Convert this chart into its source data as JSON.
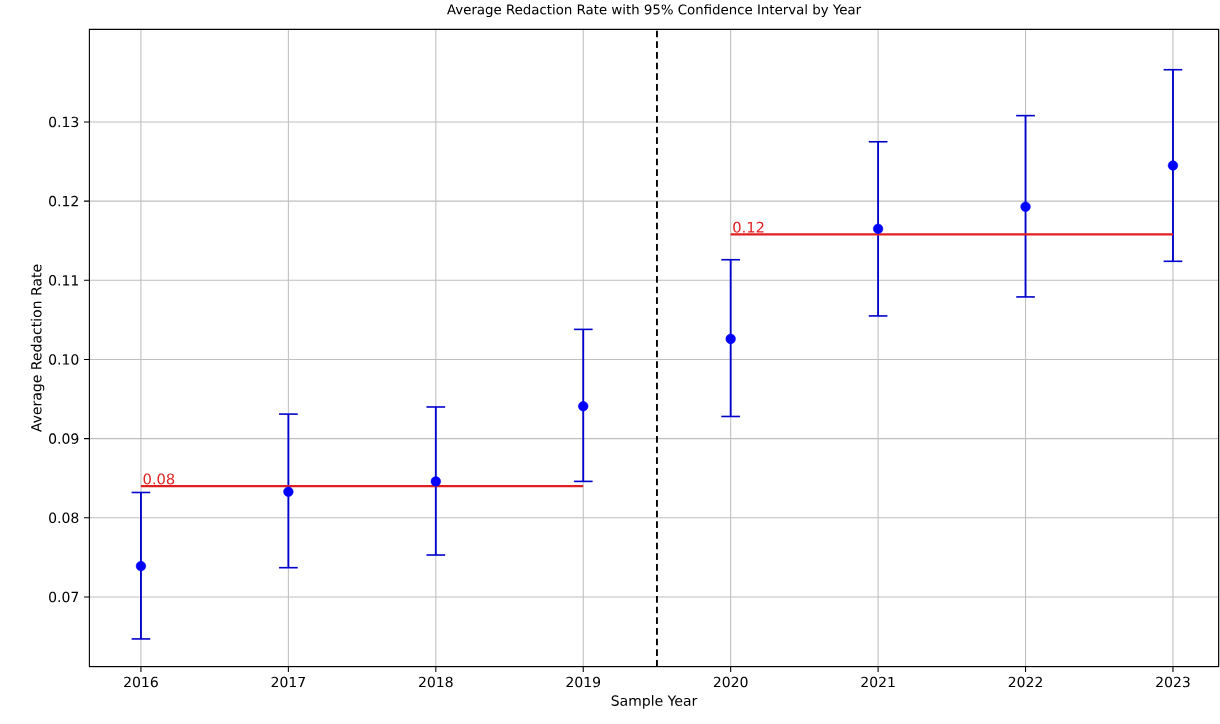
{
  "chart_data": {
    "type": "scatter",
    "title": "Average Redaction Rate with 95% Confidence Interval by Year",
    "xlabel": "Sample Year",
    "ylabel": "Average Redaction Rate",
    "xlim": [
      2015.65,
      2023.31
    ],
    "ylim": [
      0.0612,
      0.1417
    ],
    "xticks": [
      2016,
      2017,
      2018,
      2019,
      2020,
      2021,
      2022,
      2023
    ],
    "yticks": [
      {
        "value": 0.07,
        "label": "0.07"
      },
      {
        "value": 0.08,
        "label": "0.08"
      },
      {
        "value": 0.09,
        "label": "0.09"
      },
      {
        "value": 0.1,
        "label": "0.10"
      },
      {
        "value": 0.11,
        "label": "0.11"
      },
      {
        "value": 0.12,
        "label": "0.12"
      },
      {
        "value": 0.13,
        "label": "0.13"
      }
    ],
    "grid": true,
    "series": [
      {
        "color": "#0000ff",
        "marker": "circle",
        "x": [
          2016,
          2017,
          2018,
          2019,
          2020,
          2021,
          2022,
          2023
        ],
        "values": [
          0.0739,
          0.0833,
          0.0846,
          0.0941,
          0.1026,
          0.1165,
          0.1193,
          0.1245
        ],
        "errors": [
          [
            0.0647,
            0.0832
          ],
          [
            0.0737,
            0.0931
          ],
          [
            0.0753,
            0.094
          ],
          [
            0.0846,
            0.1038
          ],
          [
            0.0928,
            0.1126
          ],
          [
            0.1055,
            0.1275
          ],
          [
            0.1079,
            0.1308
          ],
          [
            0.1124,
            0.1366
          ]
        ]
      },
      {
        "type": "line",
        "color": "#e02020",
        "x": [
          2016,
          2019
        ],
        "values": [
          0.084,
          0.084
        ],
        "marker": "none"
      },
      {
        "type": "line",
        "color": "#e02020",
        "x": [
          2020,
          2023
        ],
        "values": [
          0.1158,
          0.1158
        ],
        "marker": "none"
      }
    ],
    "ref_lines": [
      {
        "axis": "x",
        "value": 2019.5,
        "color": "#000000",
        "line_style": "dashed"
      }
    ],
    "annotations": [
      {
        "text": "0.08",
        "x": 2016,
        "y": 0.084
      },
      {
        "text": "0.12",
        "x": 2020,
        "y": 0.1158
      }
    ]
  }
}
